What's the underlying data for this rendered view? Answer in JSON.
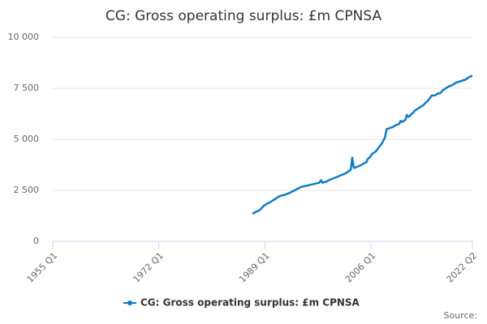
{
  "chart_data": {
    "type": "line",
    "title": "CG: Gross operating surplus: £m CPNSA",
    "x": [
      1987,
      1987.25,
      1987.5,
      1987.75,
      1988,
      1988.25,
      1988.5,
      1988.75,
      1989,
      1989.25,
      1989.5,
      1989.75,
      1990,
      1990.25,
      1990.5,
      1990.75,
      1991,
      1991.25,
      1991.5,
      1991.75,
      1992,
      1992.25,
      1992.5,
      1992.75,
      1993,
      1993.25,
      1993.5,
      1993.75,
      1994,
      1994.25,
      1994.5,
      1994.75,
      1995,
      1995.25,
      1995.5,
      1995.75,
      1996,
      1996.25,
      1996.5,
      1996.75,
      1997,
      1997.25,
      1997.5,
      1997.75,
      1998,
      1998.25,
      1998.5,
      1998.75,
      1999,
      1999.25,
      1999.5,
      1999.75,
      2000,
      2000.25,
      2000.5,
      2000.75,
      2001,
      2001.25,
      2001.5,
      2001.75,
      2002,
      2002.25,
      2002.5,
      2002.75,
      2003,
      2003.25,
      2003.5,
      2003.75,
      2004,
      2004.25,
      2004.5,
      2004.75,
      2005,
      2005.25,
      2005.5,
      2005.75,
      2006,
      2006.25,
      2006.5,
      2006.75,
      2007,
      2007.25,
      2007.5,
      2007.75,
      2008,
      2008.25,
      2008.5,
      2008.75,
      2009,
      2009.25,
      2009.5,
      2009.75,
      2010,
      2010.25,
      2010.5,
      2010.75,
      2011,
      2011.25,
      2011.5,
      2011.75,
      2012,
      2012.25,
      2012.5,
      2012.75,
      2013,
      2013.25,
      2013.5,
      2013.75,
      2014,
      2014.25,
      2014.5,
      2014.75,
      2015,
      2015.25,
      2015.5,
      2015.75,
      2016,
      2016.25,
      2016.5,
      2016.75,
      2017,
      2017.25,
      2017.5,
      2017.75,
      2018,
      2018.25,
      2018.5,
      2018.75,
      2019,
      2019.25,
      2019.5,
      2019.75,
      2020,
      2020.25,
      2020.5,
      2020.75,
      2021,
      2021.25,
      2021.5,
      2021.75,
      2022,
      2022.25
    ],
    "series": [
      {
        "name": "CG: Gross operating surplus: £m CPNSA",
        "color": "#0f7cc1",
        "values": [
          1350,
          1400,
          1440,
          1470,
          1500,
          1560,
          1640,
          1720,
          1780,
          1830,
          1870,
          1900,
          1950,
          2000,
          2050,
          2100,
          2150,
          2200,
          2230,
          2250,
          2270,
          2290,
          2320,
          2350,
          2380,
          2420,
          2460,
          2500,
          2540,
          2580,
          2620,
          2660,
          2680,
          2700,
          2720,
          2730,
          2750,
          2770,
          2790,
          2800,
          2820,
          2840,
          2860,
          2880,
          3000,
          2870,
          2900,
          2920,
          2950,
          3000,
          3030,
          3060,
          3090,
          3120,
          3150,
          3180,
          3220,
          3250,
          3280,
          3310,
          3350,
          3400,
          3450,
          3500,
          4100,
          3600,
          3620,
          3650,
          3680,
          3720,
          3750,
          3800,
          3850,
          3870,
          4050,
          4100,
          4200,
          4300,
          4350,
          4400,
          4500,
          4600,
          4700,
          4800,
          4950,
          5100,
          5500,
          5520,
          5550,
          5580,
          5600,
          5650,
          5700,
          5720,
          5750,
          5900,
          5850,
          5900,
          5950,
          6200,
          6100,
          6150,
          6250,
          6300,
          6400,
          6450,
          6500,
          6550,
          6600,
          6650,
          6700,
          6800,
          6850,
          6950,
          7050,
          7150,
          7150,
          7150,
          7200,
          7250,
          7250,
          7300,
          7400,
          7450,
          7500,
          7550,
          7600,
          7620,
          7650,
          7700,
          7750,
          7800,
          7800,
          7850,
          7850,
          7900,
          7900,
          7950,
          8000,
          8050,
          8100,
          8100
        ]
      }
    ],
    "xlim": [
      1955,
      2022.25
    ],
    "xticks": [
      {
        "value": 1955,
        "label": "1955 Q1"
      },
      {
        "value": 1972,
        "label": "1972 Q1"
      },
      {
        "value": 1989,
        "label": "1989 Q1"
      },
      {
        "value": 2006,
        "label": "2006 Q1"
      },
      {
        "value": 2022.25,
        "label": "2022 Q2"
      }
    ],
    "ylim": [
      0,
      10000
    ],
    "yticks": [
      0,
      {
        "value": 2500,
        "label": "2 500"
      },
      {
        "value": 5000,
        "label": "5 000"
      },
      {
        "value": 7500,
        "label": "7 500"
      },
      {
        "value": 10000,
        "label": "10 000"
      }
    ],
    "grid": true,
    "legend": "bottom",
    "source": "Source:"
  }
}
